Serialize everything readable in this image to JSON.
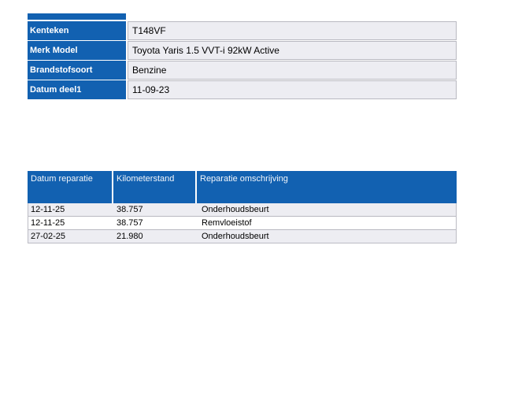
{
  "vehicle_info": {
    "rows": [
      {
        "label": "Kenteken",
        "value": "T148VF"
      },
      {
        "label": "Merk Model",
        "value": "Toyota Yaris 1.5 VVT-i 92kW Active"
      },
      {
        "label": "Brandstofsoort",
        "value": "Benzine"
      },
      {
        "label": "Datum deel1",
        "value": "11-09-23"
      }
    ]
  },
  "repair_history": {
    "columns": [
      {
        "label": "Datum reparatie"
      },
      {
        "label": "Kilometerstand"
      },
      {
        "label": "Reparatie omschrijving"
      }
    ],
    "rows": [
      {
        "datum": "12-11-25",
        "kilometerstand": "38.757",
        "omschrijving": "Onderhoudsbeurt"
      },
      {
        "datum": "12-11-25",
        "kilometerstand": "38.757",
        "omschrijving": "Remvloeistof"
      },
      {
        "datum": "27-02-25",
        "kilometerstand": "21.980",
        "omschrijving": "Onderhoudsbeurt"
      }
    ]
  },
  "colors": {
    "accent_blue": "#1261b1",
    "cell_background": "#ededf2",
    "cell_border": "#b9b9c1",
    "header_text": "#f2f6fb"
  }
}
